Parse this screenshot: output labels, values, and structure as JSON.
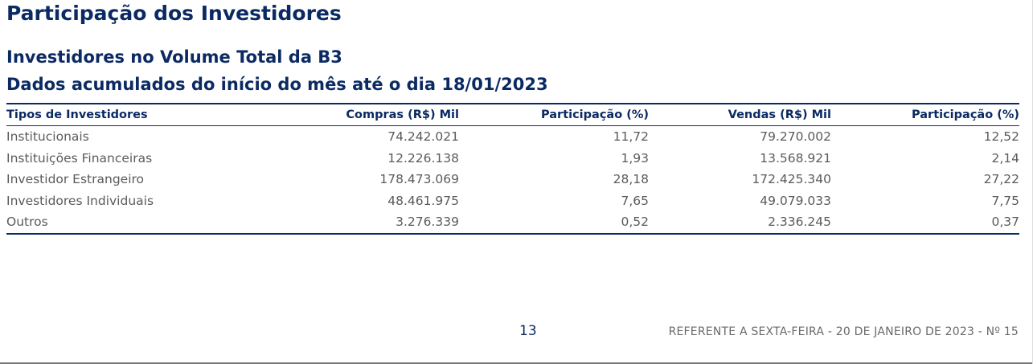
{
  "page_title": "Participação dos Investidores",
  "subtitle_1": "Investidores no Volume Total da B3",
  "subtitle_2": "Dados acumulados do início do mês até o dia 18/01/2023",
  "table": {
    "headers": [
      "Tipos de Investidores",
      "Compras (R$) Mil",
      "Participação (%)",
      "Vendas (R$) Mil",
      "Participação (%)"
    ],
    "rows": [
      [
        "Institucionais",
        "74.242.021",
        "11,72",
        "79.270.002",
        "12,52"
      ],
      [
        "Instituições Financeiras",
        "12.226.138",
        "1,93",
        "13.568.921",
        "2,14"
      ],
      [
        "Investidor Estrangeiro",
        "178.473.069",
        "28,18",
        "172.425.340",
        "27,22"
      ],
      [
        "Investidores Individuais",
        "48.461.975",
        "7,65",
        "49.079.033",
        "7,75"
      ],
      [
        "Outros",
        "3.276.339",
        "0,52",
        "2.336.245",
        "0,37"
      ]
    ]
  },
  "footer": {
    "page_number": "13",
    "reference": "REFERENTE A SEXTA-FEIRA - 20 DE JANEIRO DE 2023 - Nº 15"
  },
  "colors": {
    "heading": "#0b2a63",
    "body_text": "#5b5b5b"
  }
}
